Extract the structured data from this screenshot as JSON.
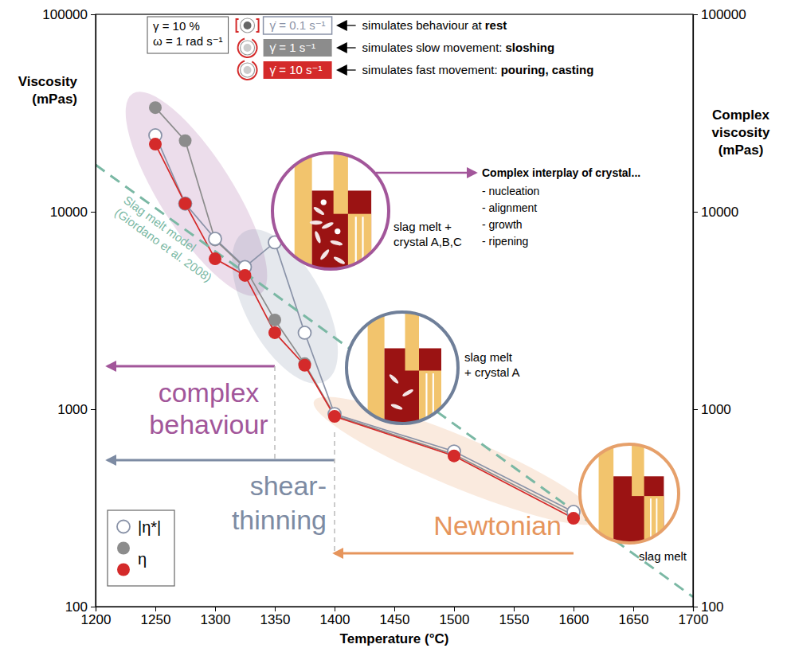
{
  "chart_data": {
    "type": "line",
    "x_label": "Temperature (°C)",
    "y_label": "Viscosity (mPas)",
    "y2_label": "Complex viscosity (mPas)",
    "log": "y",
    "grid": false,
    "legend": "lower left",
    "xlim": [
      1200,
      1700
    ],
    "xticks": [
      1200,
      1250,
      1300,
      1350,
      1400,
      1450,
      1500,
      1550,
      1600,
      1650,
      1700
    ],
    "ylim": [
      100,
      100000
    ],
    "yticks": [
      100,
      1000,
      10000,
      100000
    ],
    "y2lim": [
      100,
      100000
    ],
    "y2ticks": [
      100,
      1000,
      10000,
      100000
    ],
    "series": [
      {
        "name": "|η*|",
        "color": "#8a93a8",
        "marker": "open-circle",
        "line_style": "solid",
        "axis": "y2",
        "x": [
          1250,
          1275,
          1300,
          1325,
          1350,
          1375,
          1400,
          1500,
          1600
        ],
        "values": [
          24400,
          11000,
          7300,
          5250,
          7000,
          2440,
          945,
          611,
          302
        ]
      },
      {
        "name": "η",
        "color": "#8c8c8c",
        "marker": "circle",
        "line_style": "solid",
        "x": [
          1250,
          1275,
          1300,
          1325,
          1350,
          1375,
          1400,
          1500,
          1600
        ],
        "values": [
          33700,
          22900,
          7200,
          5200,
          2830,
          1700,
          930,
          590,
          290
        ]
      },
      {
        "name": "η",
        "color": "#d42a2a",
        "marker": "circle",
        "line_style": "solid",
        "x": [
          1250,
          1275,
          1300,
          1325,
          1350,
          1375,
          1400,
          1500,
          1600
        ],
        "values": [
          22000,
          11000,
          5780,
          4760,
          2440,
          1670,
          920,
          580,
          280
        ]
      },
      {
        "name": "Slag melt model (Giordano et al. 2008)",
        "color": "#7ab8a4",
        "marker": "none",
        "line_style": "dashed",
        "x": [
          1200,
          1700
        ],
        "values": [
          17300,
          112
        ]
      }
    ],
    "conditions": {
      "lines": [
        "γ = 10 %",
        "ω = 1 rad s⁻¹"
      ],
      "rates": [
        {
          "label": "γ̇ = 0.1 s⁻¹",
          "color": "#8a93a8",
          "marker": "open-circle",
          "text": "simulates behaviour at",
          "emphasis": "rest"
        },
        {
          "label": "γ̇ = 1 s⁻¹",
          "color": "#8c8c8c",
          "marker": "circle",
          "text": "simulates slow movement:",
          "emphasis": "sloshing"
        },
        {
          "label": "γ̇ = 10 s⁻¹",
          "color": "#d42a2a",
          "marker": "circle",
          "text": "simulates fast movement:",
          "emphasis": "pouring, casting"
        }
      ]
    },
    "regimes": [
      {
        "label": "complex behaviour",
        "from": 1350,
        "to": 1210,
        "color": "#a2569a"
      },
      {
        "label": "shear-thinning",
        "from": 1400,
        "to": 1210,
        "color": "#7d8ba3"
      },
      {
        "label": "Newtonian",
        "from": 1600,
        "to": 1400,
        "color": "#e6955c"
      }
    ],
    "insets": [
      {
        "label_lines": [
          "slag melt +",
          "crystal A,B,C"
        ],
        "color": "#a2569a"
      },
      {
        "label_lines": [
          "slag melt",
          "+ crystal A"
        ],
        "color": "#6f7f99"
      },
      {
        "label_lines": [
          "slag melt"
        ],
        "color": "#e6a06a"
      }
    ],
    "callout": {
      "title": "Complex interplay of crystal...",
      "items": [
        "- nucleation",
        "- alignment",
        "- growth",
        "- ripening"
      ]
    }
  }
}
